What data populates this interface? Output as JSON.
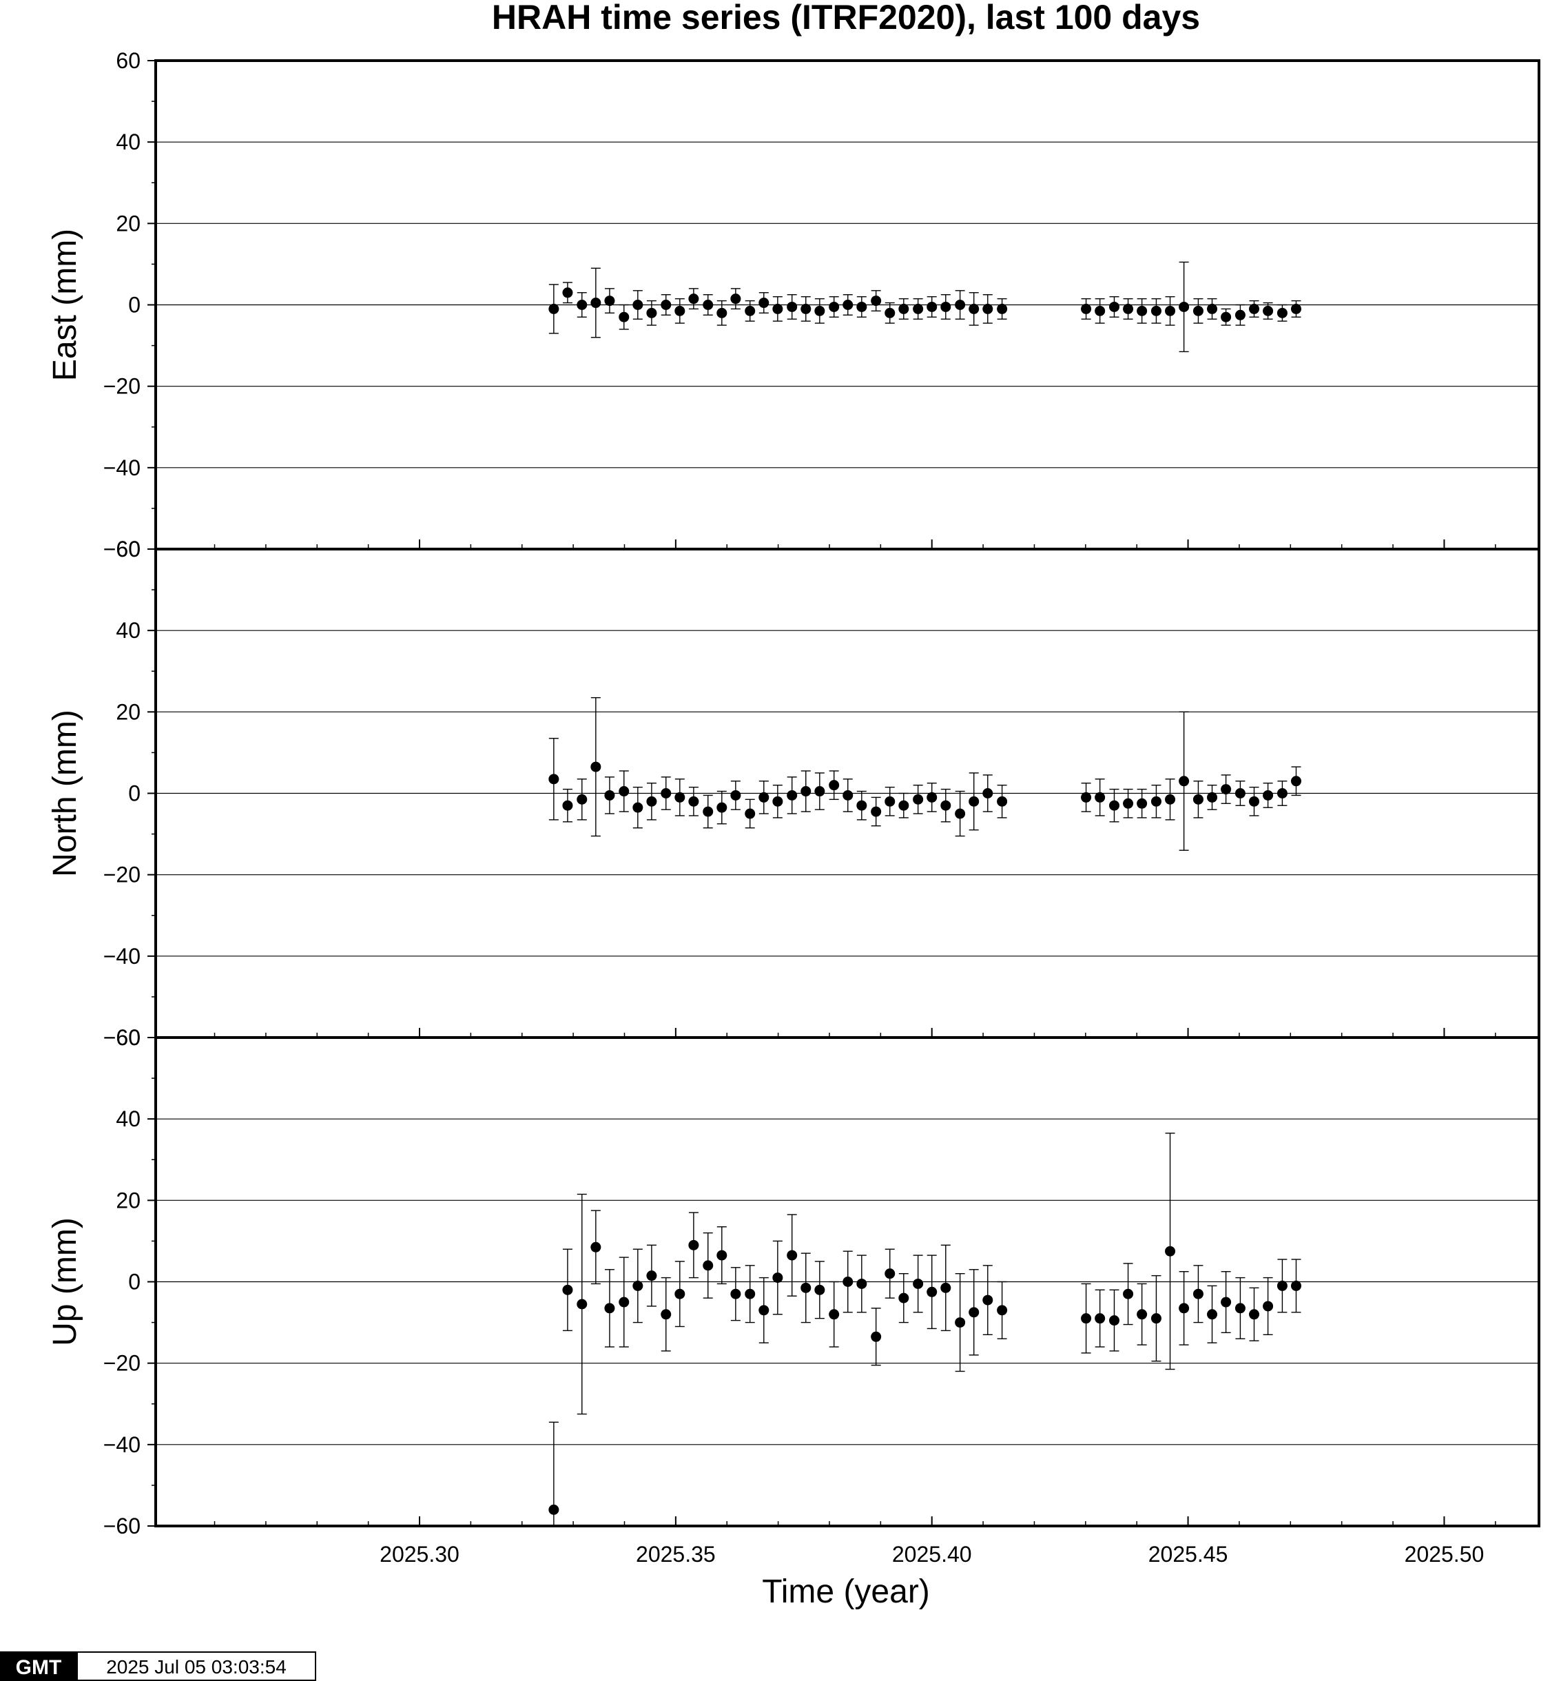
{
  "chart_data": {
    "type": "scatter",
    "title": "HRAH time series (ITRF2020), last 100 days",
    "xlabel": "Time (year)",
    "xlim": [
      2025.2485,
      2025.5185
    ],
    "x_ticks": [
      "2025.30",
      "2025.35",
      "2025.40",
      "2025.45",
      "2025.50"
    ],
    "x_tick_values": [
      2025.3,
      2025.35,
      2025.4,
      2025.45,
      2025.5
    ],
    "y_tick_values": [
      -60,
      -40,
      -20,
      0,
      20,
      40,
      60
    ],
    "y_tick_labels": [
      "−60",
      "−40",
      "−20",
      "0",
      "20",
      "40",
      "60"
    ],
    "grid": true,
    "x": [
      2025.3262,
      2025.3289,
      2025.3317,
      2025.3344,
      2025.3371,
      2025.3399,
      2025.3426,
      2025.3453,
      2025.3481,
      2025.3508,
      2025.3535,
      2025.3563,
      2025.359,
      2025.3617,
      2025.3645,
      2025.3672,
      2025.3699,
      2025.3727,
      2025.3754,
      2025.3781,
      2025.3809,
      2025.3836,
      2025.3863,
      2025.3891,
      2025.3918,
      2025.3945,
      2025.3973,
      2025.4,
      2025.4027,
      2025.4055,
      2025.4082,
      2025.4109,
      2025.4137,
      2025.4301,
      2025.4328,
      2025.4356,
      2025.4383,
      2025.441,
      2025.4438,
      2025.4465,
      2025.4492,
      2025.452,
      2025.4547,
      2025.4574,
      2025.4602,
      2025.4629,
      2025.4656,
      2025.4684,
      2025.4711
    ],
    "panels": [
      {
        "ylabel": "East (mm)",
        "ylim": [
          -60,
          60
        ],
        "values": [
          -1.0,
          3.0,
          0.0,
          0.5,
          1.0,
          -3.0,
          0.0,
          -2.0,
          0.0,
          -1.5,
          1.5,
          0.0,
          -2.0,
          1.5,
          -1.5,
          0.5,
          -1.0,
          -0.5,
          -1.0,
          -1.5,
          -0.5,
          0.0,
          -0.5,
          1.0,
          -2.0,
          -1.0,
          -1.0,
          -0.5,
          -0.5,
          0.0,
          -1.0,
          -1.0,
          -1.0,
          -1.0,
          -1.5,
          -0.5,
          -1.0,
          -1.5,
          -1.5,
          -1.5,
          -0.5,
          -1.5,
          -1.0,
          -3.0,
          -2.5,
          -1.0,
          -1.5,
          -2.0,
          -1.0
        ],
        "errors": [
          6.0,
          2.5,
          3.0,
          8.5,
          3.0,
          3.0,
          3.5,
          3.0,
          2.5,
          3.0,
          2.5,
          2.5,
          3.0,
          2.5,
          2.5,
          2.5,
          3.0,
          3.0,
          3.0,
          3.0,
          2.5,
          2.5,
          2.5,
          2.5,
          2.5,
          2.5,
          2.5,
          2.5,
          3.0,
          3.5,
          4.0,
          3.5,
          2.5,
          2.5,
          3.0,
          2.5,
          2.5,
          3.0,
          3.0,
          3.5,
          11.0,
          3.0,
          2.5,
          2.0,
          2.5,
          2.0,
          2.0,
          2.0,
          2.0
        ]
      },
      {
        "ylabel": "North (mm)",
        "ylim": [
          -60,
          60
        ],
        "values": [
          3.5,
          -3.0,
          -1.5,
          6.5,
          -0.5,
          0.5,
          -3.5,
          -2.0,
          0.0,
          -1.0,
          -2.0,
          -4.5,
          -3.5,
          -0.5,
          -5.0,
          -1.0,
          -2.0,
          -0.5,
          0.5,
          0.5,
          2.0,
          -0.5,
          -3.0,
          -4.5,
          -2.0,
          -3.0,
          -1.5,
          -1.0,
          -3.0,
          -5.0,
          -2.0,
          0.0,
          -2.0,
          -1.0,
          -1.0,
          -3.0,
          -2.5,
          -2.5,
          -2.0,
          -1.5,
          3.0,
          -1.5,
          -1.0,
          1.0,
          0.0,
          -2.0,
          -0.5,
          0.0,
          3.0
        ],
        "errors": [
          10.0,
          4.0,
          5.0,
          17.0,
          4.5,
          5.0,
          5.0,
          4.5,
          4.0,
          4.5,
          3.5,
          4.0,
          4.0,
          3.5,
          3.5,
          4.0,
          4.0,
          4.5,
          5.0,
          4.5,
          3.5,
          4.0,
          3.5,
          3.5,
          3.5,
          3.0,
          3.5,
          3.5,
          4.0,
          5.5,
          7.0,
          4.5,
          4.0,
          3.5,
          4.5,
          4.0,
          3.5,
          3.5,
          4.0,
          5.0,
          17.0,
          4.5,
          3.0,
          3.5,
          3.0,
          3.5,
          3.0,
          3.0,
          3.5
        ]
      },
      {
        "ylabel": "Up (mm)",
        "ylim": [
          -60,
          60
        ],
        "values": [
          -56.0,
          -2.0,
          -5.5,
          8.5,
          -6.5,
          -5.0,
          -1.0,
          1.5,
          -8.0,
          -3.0,
          9.0,
          4.0,
          6.5,
          -3.0,
          -3.0,
          -7.0,
          1.0,
          6.5,
          -1.5,
          -2.0,
          -8.0,
          0.0,
          -0.5,
          -13.5,
          2.0,
          -4.0,
          -0.5,
          -2.5,
          -1.5,
          -10.0,
          -7.5,
          -4.5,
          -7.0,
          -9.0,
          -9.0,
          -9.5,
          -3.0,
          -8.0,
          -9.0,
          7.5,
          -6.5,
          -3.0,
          -8.0,
          -5.0,
          -6.5,
          -8.0,
          -6.0,
          -1.0,
          -1.0
        ],
        "errors": [
          21.5,
          10.0,
          27.0,
          9.0,
          9.5,
          11.0,
          9.0,
          7.5,
          9.0,
          8.0,
          8.0,
          8.0,
          7.0,
          6.5,
          7.0,
          8.0,
          9.0,
          10.0,
          8.5,
          7.0,
          8.0,
          7.5,
          7.0,
          7.0,
          6.0,
          6.0,
          7.0,
          9.0,
          10.5,
          12.0,
          10.5,
          8.5,
          7.0,
          8.5,
          7.0,
          7.5,
          7.5,
          7.5,
          10.5,
          29.0,
          9.0,
          7.0,
          7.0,
          7.5,
          7.5,
          6.5,
          7.0,
          6.5,
          6.5
        ]
      }
    ]
  },
  "footer": {
    "logo": "GMT",
    "timestamp": "2025 Jul 05 03:03:54"
  }
}
